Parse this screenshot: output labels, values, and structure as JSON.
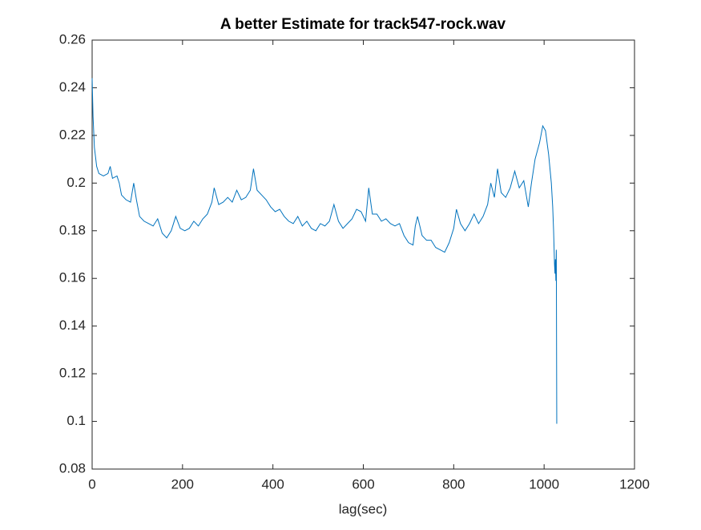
{
  "chart_data": {
    "type": "line",
    "title": "A better Estimate for track547-rock.wav",
    "x_label": "lag(sec)",
    "x": [
      0,
      2,
      5,
      10,
      15,
      25,
      35,
      40,
      45,
      55,
      60,
      65,
      75,
      85,
      92,
      98,
      105,
      115,
      125,
      135,
      145,
      155,
      165,
      175,
      185,
      195,
      205,
      215,
      225,
      235,
      245,
      255,
      265,
      270,
      280,
      290,
      300,
      310,
      320,
      330,
      340,
      350,
      357,
      365,
      375,
      385,
      395,
      405,
      415,
      425,
      435,
      445,
      455,
      465,
      475,
      485,
      495,
      505,
      515,
      525,
      535,
      545,
      555,
      565,
      575,
      585,
      595,
      605,
      612,
      620,
      630,
      640,
      650,
      660,
      670,
      680,
      690,
      700,
      710,
      715,
      720,
      730,
      740,
      750,
      760,
      770,
      780,
      790,
      800,
      806,
      815,
      825,
      835,
      845,
      855,
      865,
      875,
      882,
      890,
      897,
      905,
      915,
      925,
      935,
      945,
      955,
      965,
      972,
      980,
      990,
      997,
      1003,
      1010,
      1016,
      1019,
      1021,
      1023,
      1024,
      1025,
      1026,
      1027,
      1028
    ],
    "series": [
      {
        "color": "#0072BD",
        "values": [
          0.244,
          0.228,
          0.215,
          0.207,
          0.204,
          0.203,
          0.204,
          0.207,
          0.202,
          0.203,
          0.2,
          0.195,
          0.193,
          0.192,
          0.2,
          0.193,
          0.186,
          0.184,
          0.183,
          0.182,
          0.185,
          0.179,
          0.177,
          0.18,
          0.186,
          0.181,
          0.18,
          0.181,
          0.184,
          0.182,
          0.185,
          0.187,
          0.192,
          0.198,
          0.191,
          0.192,
          0.194,
          0.192,
          0.197,
          0.193,
          0.194,
          0.197,
          0.206,
          0.197,
          0.195,
          0.193,
          0.19,
          0.188,
          0.189,
          0.186,
          0.184,
          0.183,
          0.186,
          0.182,
          0.184,
          0.181,
          0.18,
          0.183,
          0.182,
          0.184,
          0.191,
          0.184,
          0.181,
          0.183,
          0.185,
          0.189,
          0.188,
          0.184,
          0.198,
          0.187,
          0.187,
          0.184,
          0.185,
          0.183,
          0.182,
          0.183,
          0.178,
          0.175,
          0.174,
          0.182,
          0.186,
          0.178,
          0.176,
          0.176,
          0.173,
          0.172,
          0.171,
          0.175,
          0.181,
          0.189,
          0.183,
          0.18,
          0.183,
          0.187,
          0.183,
          0.186,
          0.191,
          0.2,
          0.194,
          0.206,
          0.196,
          0.194,
          0.198,
          0.205,
          0.198,
          0.201,
          0.19,
          0.2,
          0.21,
          0.217,
          0.224,
          0.222,
          0.212,
          0.2,
          0.19,
          0.18,
          0.166,
          0.162,
          0.168,
          0.159,
          0.172,
          0.099
        ]
      }
    ],
    "xlim": [
      0,
      1200
    ],
    "xticks": [
      0,
      200,
      400,
      600,
      800,
      1000,
      1200
    ],
    "ylim": [
      0.08,
      0.26
    ],
    "yticks": [
      0.08,
      0.1,
      0.12,
      0.14,
      0.16,
      0.18,
      0.2,
      0.22,
      0.24,
      0.26
    ]
  }
}
